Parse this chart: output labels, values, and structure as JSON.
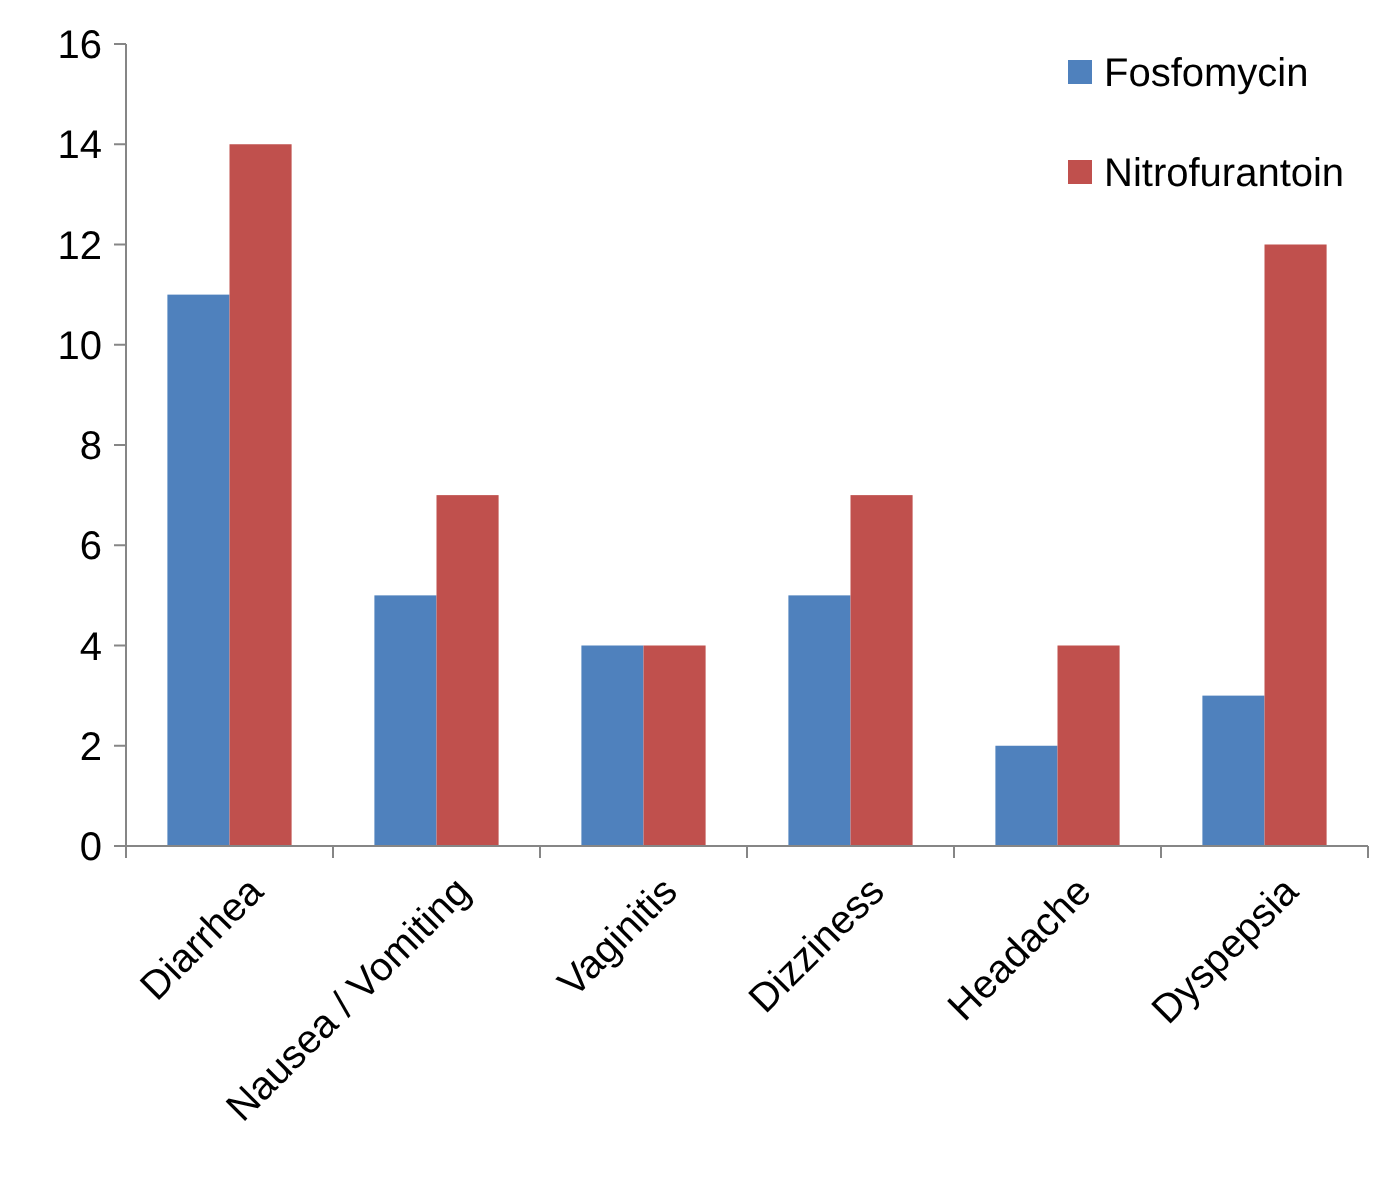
{
  "chart_data": {
    "type": "bar",
    "categories": [
      "Diarrhea",
      "Nausea / Vomiting",
      "Vaginitis",
      "Dizziness",
      "Headache",
      "Dyspepsia"
    ],
    "series": [
      {
        "name": "Fosfomycin",
        "color": "#4f81bd",
        "values": [
          11,
          5,
          4,
          5,
          2,
          3
        ]
      },
      {
        "name": "Nitrofurantoin",
        "color": "#c0504d",
        "values": [
          14,
          7,
          4,
          7,
          4,
          12
        ]
      }
    ],
    "ylim": [
      0,
      16
    ],
    "yticks": [
      0,
      2,
      4,
      6,
      8,
      10,
      12,
      14,
      16
    ],
    "grid": false,
    "legend": "top right"
  }
}
